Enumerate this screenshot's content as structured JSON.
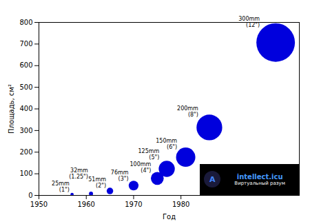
{
  "chart_data": {
    "type": "scatter",
    "x": [
      1957,
      1961,
      1965,
      1970,
      1975,
      1977,
      1981,
      1986,
      2000
    ],
    "values": [
      4.9,
      8.0,
      20.4,
      45.4,
      78.5,
      122.7,
      176.7,
      314.2,
      706.9
    ],
    "sizes": [
      4.9,
      8.0,
      20.4,
      45.4,
      78.5,
      122.7,
      176.7,
      314.2,
      706.9
    ],
    "labels": [
      "25mm\n(1\")",
      "32mm\n(1.25\")",
      "51mm\n(2\")",
      "76mm\n(3\")",
      "100mm\n(4\")",
      "125mm\n(5\")",
      "150mm\n(6\")",
      "200mm\n(8\")",
      "300mm\n(12\")"
    ],
    "color": "#0000dd",
    "xlabel": "Год",
    "ylabel": "Площадь, см²",
    "xlim": [
      1950,
      2005
    ],
    "ylim": [
      0,
      800
    ],
    "xticks": [
      1950,
      1960,
      1970,
      1980
    ],
    "yticks": [
      0,
      100,
      200,
      300,
      400,
      500,
      600,
      700,
      800
    ],
    "annotations": [
      "A",
      "intellect.icu",
      "Виртуальный разум"
    ]
  }
}
